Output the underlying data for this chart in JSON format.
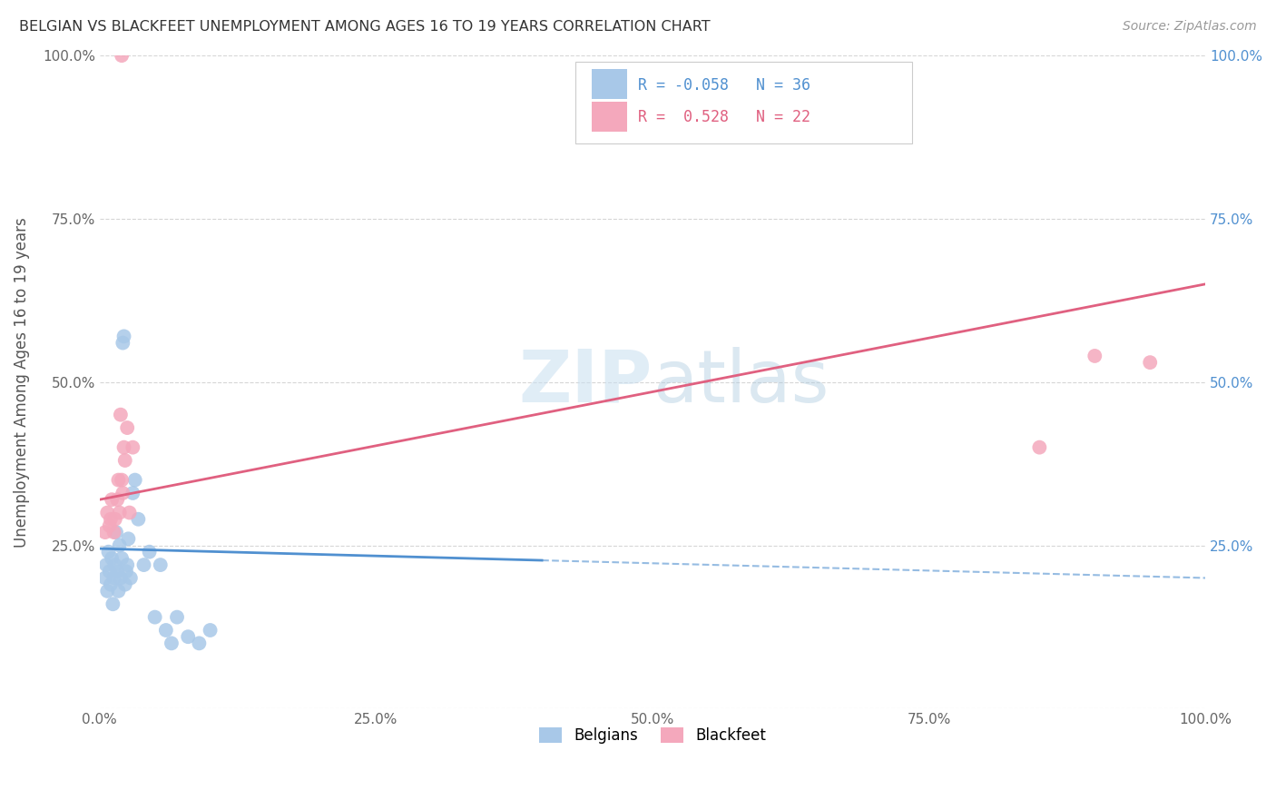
{
  "title": "BELGIAN VS BLACKFEET UNEMPLOYMENT AMONG AGES 16 TO 19 YEARS CORRELATION CHART",
  "source": "Source: ZipAtlas.com",
  "ylabel": "Unemployment Among Ages 16 to 19 years",
  "xlim": [
    0,
    1.0
  ],
  "ylim": [
    0,
    1.0
  ],
  "xtick_labels": [
    "0.0%",
    "25.0%",
    "50.0%",
    "75.0%",
    "100.0%"
  ],
  "ytick_labels": [
    "",
    "25.0%",
    "50.0%",
    "75.0%",
    "100.0%"
  ],
  "right_ytick_labels": [
    "",
    "25.0%",
    "50.0%",
    "75.0%",
    "100.0%"
  ],
  "belgian_color": "#a8c8e8",
  "blackfeet_color": "#f4a8bc",
  "belgian_line_color": "#5090d0",
  "blackfeet_line_color": "#e06080",
  "belgian_r": -0.058,
  "belgian_n": 36,
  "blackfeet_r": 0.528,
  "blackfeet_n": 22,
  "background_color": "#ffffff",
  "grid_color": "#cccccc",
  "belgians_x": [
    0.005,
    0.006,
    0.007,
    0.008,
    0.009,
    0.01,
    0.011,
    0.012,
    0.013,
    0.014,
    0.015,
    0.016,
    0.017,
    0.018,
    0.019,
    0.02,
    0.021,
    0.022,
    0.023,
    0.024,
    0.025,
    0.026,
    0.028,
    0.03,
    0.032,
    0.035,
    0.04,
    0.045,
    0.05,
    0.055,
    0.06,
    0.065,
    0.07,
    0.08,
    0.09,
    0.1
  ],
  "belgians_y": [
    0.2,
    0.22,
    0.18,
    0.24,
    0.21,
    0.19,
    0.23,
    0.16,
    0.2,
    0.22,
    0.27,
    0.21,
    0.18,
    0.25,
    0.2,
    0.23,
    0.56,
    0.57,
    0.19,
    0.21,
    0.22,
    0.26,
    0.2,
    0.33,
    0.35,
    0.29,
    0.22,
    0.24,
    0.14,
    0.22,
    0.12,
    0.1,
    0.14,
    0.11,
    0.1,
    0.12
  ],
  "blackfeet_x": [
    0.005,
    0.007,
    0.009,
    0.01,
    0.011,
    0.013,
    0.014,
    0.016,
    0.017,
    0.018,
    0.019,
    0.02,
    0.021,
    0.022,
    0.023,
    0.025,
    0.027,
    0.03,
    0.02,
    0.85,
    0.9,
    0.95
  ],
  "blackfeet_y": [
    0.27,
    0.3,
    0.28,
    0.29,
    0.32,
    0.27,
    0.29,
    0.32,
    0.35,
    0.3,
    0.45,
    0.35,
    0.33,
    0.4,
    0.38,
    0.43,
    0.3,
    0.4,
    1.0,
    0.4,
    0.54,
    0.53
  ],
  "belgian_line_x0": 0.0,
  "belgian_line_x_solid_end": 0.4,
  "belgian_line_x1": 1.0,
  "belgian_line_y0": 0.245,
  "belgian_line_y1": 0.2,
  "blackfeet_line_y0": 0.32,
  "blackfeet_line_y1": 0.65
}
